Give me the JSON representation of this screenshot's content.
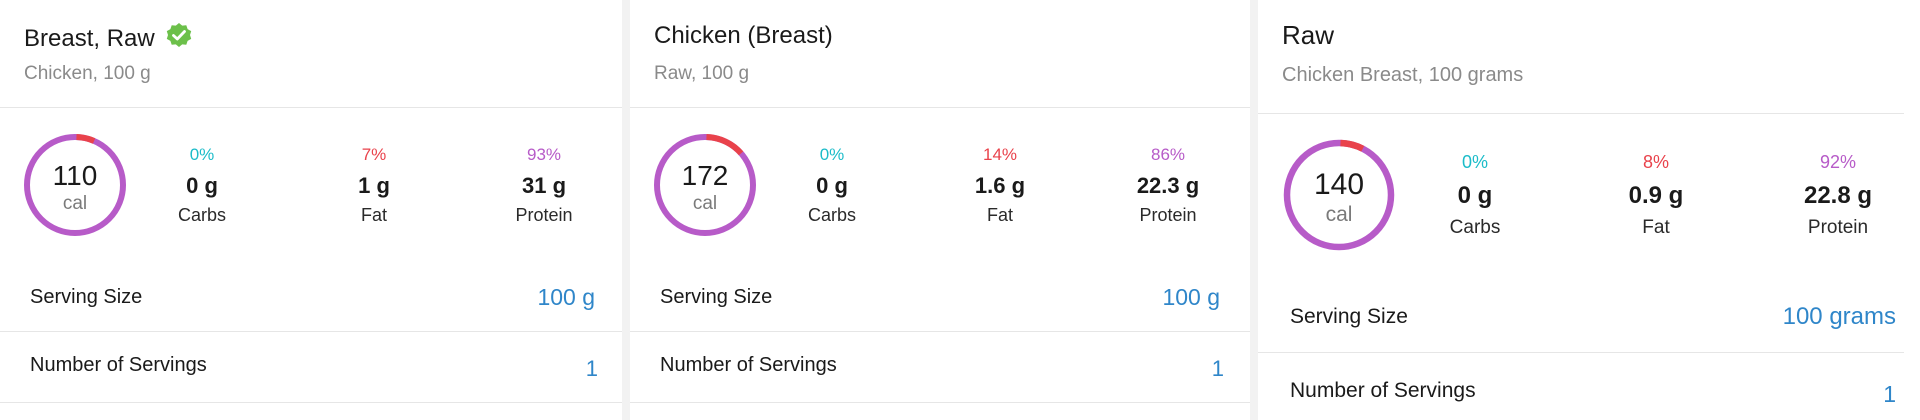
{
  "panels": [
    {
      "title": "Breast, Raw",
      "verified_icon": "verified-check-icon",
      "subtitle": "Chicken, 100 g",
      "calories": "110",
      "cal_unit": "cal",
      "fat_fraction": 0.07,
      "macros": [
        {
          "pct": "0%",
          "value": "0 g",
          "label": "Carbs"
        },
        {
          "pct": "7%",
          "value": "1 g",
          "label": "Fat"
        },
        {
          "pct": "93%",
          "value": "31 g",
          "label": "Protein"
        }
      ],
      "serving_size_label": "Serving Size",
      "serving_size_value": "100 g",
      "servings_label": "Number of Servings",
      "servings_value": "1"
    },
    {
      "title": "Chicken (Breast)",
      "subtitle": "Raw, 100 g",
      "calories": "172",
      "cal_unit": "cal",
      "fat_fraction": 0.14,
      "macros": [
        {
          "pct": "0%",
          "value": "0 g",
          "label": "Carbs"
        },
        {
          "pct": "14%",
          "value": "1.6 g",
          "label": "Fat"
        },
        {
          "pct": "86%",
          "value": "22.3 g",
          "label": "Protein"
        }
      ],
      "serving_size_label": "Serving Size",
      "serving_size_value": "100 g",
      "servings_label": "Number of Servings",
      "servings_value": "1"
    },
    {
      "title": "Raw",
      "subtitle": "Chicken Breast, 100 grams",
      "calories": "140",
      "cal_unit": "cal",
      "fat_fraction": 0.08,
      "macros": [
        {
          "pct": "0%",
          "value": "0 g",
          "label": "Carbs"
        },
        {
          "pct": "8%",
          "value": "0.9 g",
          "label": "Fat"
        },
        {
          "pct": "92%",
          "value": "22.8 g",
          "label": "Protein"
        }
      ],
      "serving_size_label": "Serving Size",
      "serving_size_value": "100 grams",
      "servings_label": "Number of Servings",
      "servings_value": "1"
    }
  ],
  "colors": {
    "carbs": "#1bbcc9",
    "fat": "#e9424b",
    "protein": "#b75bc8",
    "accent": "#2f86c9",
    "verified": "#6cc04a"
  }
}
